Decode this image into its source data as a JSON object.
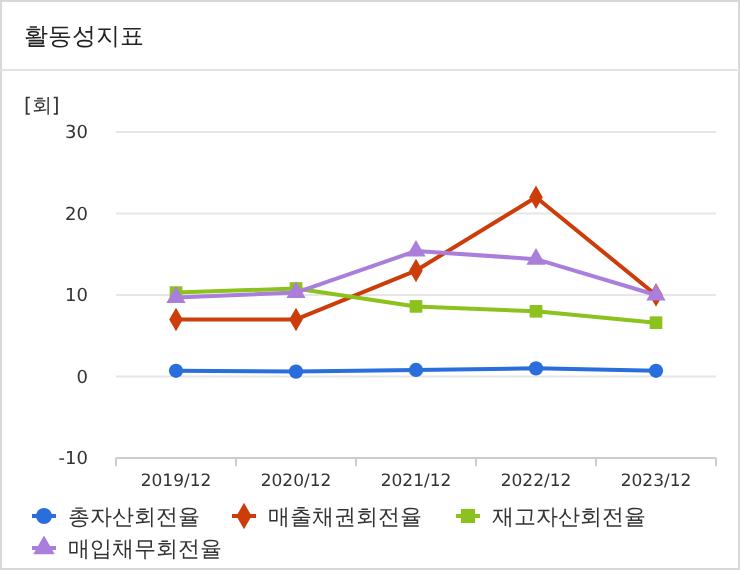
{
  "chart_data": {
    "type": "line",
    "title": "활동성지표",
    "ylabel": "[회]",
    "categories": [
      "2019/12",
      "2020/12",
      "2021/12",
      "2022/12",
      "2023/12"
    ],
    "series": [
      {
        "name": "총자산회전율",
        "color": "#2a6edb",
        "values": [
          0.7,
          0.6,
          0.8,
          1.0,
          0.7
        ],
        "marker": "circle"
      },
      {
        "name": "매출채권회전율",
        "color": "#cc3d0a",
        "values": [
          7.0,
          7.0,
          13.0,
          22.0,
          10.0
        ],
        "marker": "diamond"
      },
      {
        "name": "재고자산회전율",
        "color": "#8cc21e",
        "values": [
          10.3,
          10.8,
          8.6,
          8.0,
          6.6
        ],
        "marker": "square"
      },
      {
        "name": "매입채무회전율",
        "color": "#a97fdb",
        "values": [
          9.7,
          10.3,
          15.4,
          14.4,
          10.0
        ],
        "marker": "triangle"
      }
    ],
    "ylim": [
      -10,
      30
    ],
    "yticks": [
      -10,
      0,
      10,
      20,
      30
    ],
    "grid": "y",
    "legend": "bottom"
  }
}
